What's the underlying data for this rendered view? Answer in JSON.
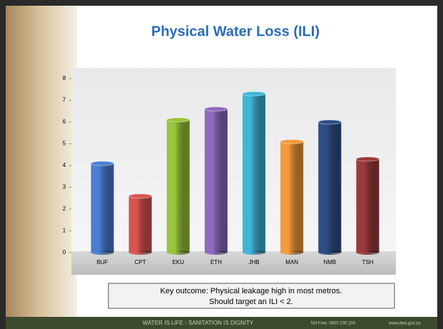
{
  "chart_data": {
    "type": "bar",
    "title": "Physical Water Loss (ILI)",
    "categories": [
      "BUF",
      "CPT",
      "EKU",
      "ETH",
      "JHB",
      "MAN",
      "NMB",
      "TSH"
    ],
    "values": [
      4.1,
      2.6,
      6.1,
      6.6,
      7.3,
      5.1,
      6.0,
      4.3
    ],
    "colors": [
      "#4a7fd4",
      "#d9534f",
      "#9ac43c",
      "#8e6bbf",
      "#3fb6d8",
      "#f59a3c",
      "#2e4f86",
      "#9b3a3a"
    ],
    "ylim": [
      0,
      8
    ],
    "yticks": [
      0,
      1,
      2,
      3,
      4,
      5,
      6,
      7,
      8
    ]
  },
  "callout": [
    "Key outcome: Physical leakage high in most metros.",
    "Should target an ILI < 2."
  ],
  "footer": {
    "slogan": "WATER IS LIFE - SANITATION IS DIGNITY",
    "phone": "Toll Free: 0800 200 200",
    "web": "www.dwa.gov.za"
  }
}
